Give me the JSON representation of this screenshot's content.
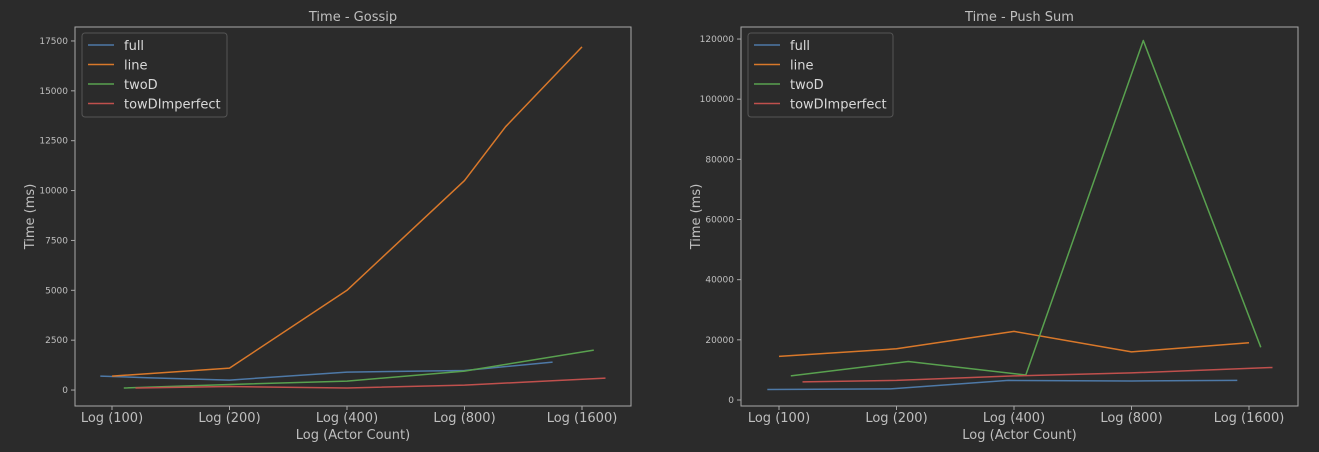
{
  "chart_data": [
    {
      "type": "line",
      "title": "Time - Gossip",
      "xlabel": "Log (Actor Count)",
      "ylabel": "Time (ms)",
      "categories": [
        "Log (100)",
        "Log (200)",
        "Log (400)",
        "Log (800)",
        "Log (1600)"
      ],
      "ylim": [
        -800,
        18200
      ],
      "yticks": [
        0,
        2500,
        5000,
        7500,
        10000,
        12500,
        15000,
        17500
      ],
      "legend": "top-left",
      "series": [
        {
          "name": "full",
          "color": "#4e79a7",
          "points": [
            [
              -0.1,
              700
            ],
            [
              0.3,
              620
            ],
            [
              1.0,
              500
            ],
            [
              2.0,
              900
            ],
            [
              3.0,
              980
            ],
            [
              3.75,
              1400
            ]
          ]
        },
        {
          "name": "line",
          "color": "#d9782a",
          "points": [
            [
              0.0,
              700
            ],
            [
              1.0,
              1100
            ],
            [
              2.0,
              5000
            ],
            [
              3.0,
              10500
            ],
            [
              3.35,
              13200
            ],
            [
              4.0,
              17200
            ]
          ]
        },
        {
          "name": "twoD",
          "color": "#59a14f",
          "points": [
            [
              0.1,
              100
            ],
            [
              1.0,
              280
            ],
            [
              2.0,
              450
            ],
            [
              3.0,
              950
            ],
            [
              4.1,
              2000
            ]
          ]
        },
        {
          "name": "towDImperfect",
          "color": "#c0504d",
          "points": [
            [
              0.2,
              100
            ],
            [
              1.0,
              180
            ],
            [
              2.0,
              100
            ],
            [
              3.0,
              250
            ],
            [
              4.2,
              600
            ]
          ]
        }
      ]
    },
    {
      "type": "line",
      "title": "Time - Push Sum",
      "xlabel": "Log (Actor Count)",
      "ylabel": "Time (ms)",
      "categories": [
        "Log (100)",
        "Log (200)",
        "Log (400)",
        "Log (800)",
        "Log (1600)"
      ],
      "ylim": [
        -2000,
        124000
      ],
      "yticks": [
        0,
        20000,
        40000,
        60000,
        80000,
        100000,
        120000
      ],
      "legend": "top-left",
      "series": [
        {
          "name": "full",
          "color": "#4e79a7",
          "points": [
            [
              -0.1,
              3500
            ],
            [
              0.95,
              3700
            ],
            [
              1.95,
              6500
            ],
            [
              3.0,
              6300
            ],
            [
              3.9,
              6500
            ]
          ]
        },
        {
          "name": "line",
          "color": "#d9782a",
          "points": [
            [
              0.0,
              14500
            ],
            [
              1.0,
              17000
            ],
            [
              2.0,
              22800
            ],
            [
              3.0,
              16000
            ],
            [
              4.0,
              19000
            ]
          ]
        },
        {
          "name": "twoD",
          "color": "#59a14f",
          "points": [
            [
              0.1,
              8000
            ],
            [
              1.1,
              12800
            ],
            [
              2.1,
              8300
            ],
            [
              3.1,
              119500
            ],
            [
              4.1,
              17500
            ]
          ]
        },
        {
          "name": "towDImperfect",
          "color": "#c0504d",
          "points": [
            [
              0.2,
              6000
            ],
            [
              1.0,
              6500
            ],
            [
              2.0,
              8000
            ],
            [
              3.0,
              9000
            ],
            [
              4.2,
              10800
            ]
          ]
        }
      ]
    }
  ]
}
